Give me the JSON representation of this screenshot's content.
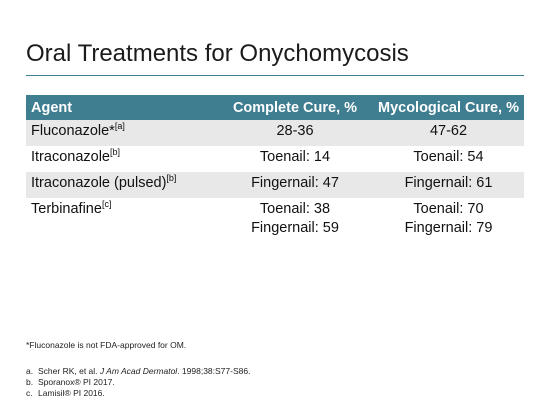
{
  "title": "Oral Treatments for Onychomycosis",
  "table": {
    "headers": [
      "Agent",
      "Complete Cure, %",
      "Mycological Cure, %"
    ],
    "rows": [
      {
        "agent": "Fluconazole*",
        "agent_ref": "[a]",
        "complete": [
          "28-36"
        ],
        "mycological": [
          "47-62"
        ]
      },
      {
        "agent": "Itraconazole",
        "agent_ref": "[b]",
        "complete": [
          "Toenail: 14"
        ],
        "mycological": [
          "Toenail: 54"
        ]
      },
      {
        "agent": "Itraconazole (pulsed)",
        "agent_ref": "[b]",
        "complete": [
          "Fingernail: 47"
        ],
        "mycological": [
          "Fingernail: 61"
        ]
      },
      {
        "agent": "Terbinafine",
        "agent_ref": "[c]",
        "complete": [
          "Toenail: 38",
          "Fingernail: 59"
        ],
        "mycological": [
          "Toenail: 70",
          "Fingernail: 79"
        ]
      }
    ]
  },
  "footnote": "*Fluconazole is not FDA-approved for OM.",
  "references": [
    {
      "marker": "a.",
      "before": "Scher RK, et al. ",
      "journal": "J Am Acad Dermatol",
      "after": ". 1998;38:S77-S86."
    },
    {
      "marker": "b.",
      "before": "Sporanox® PI 2017.",
      "journal": "",
      "after": ""
    },
    {
      "marker": "c.",
      "before": "Lamisil® PI 2016.",
      "journal": "",
      "after": ""
    }
  ],
  "colors": {
    "header_bg": "#3f7d91",
    "shade_bg": "#e8e8e8",
    "rule": "#3f7d91"
  }
}
